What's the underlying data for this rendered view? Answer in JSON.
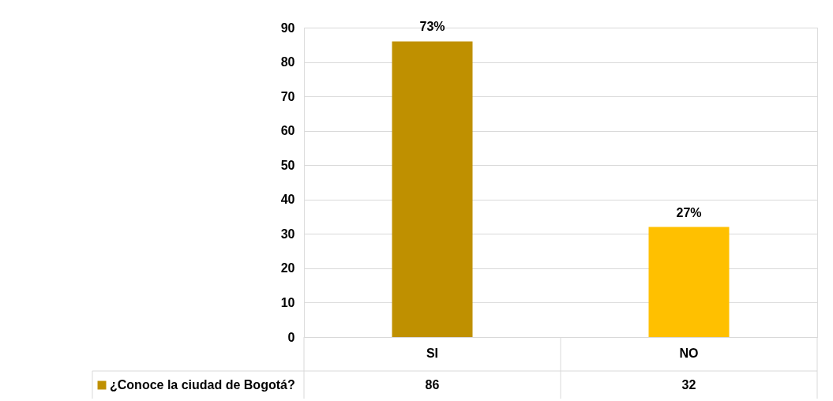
{
  "chart_data": {
    "type": "bar",
    "categories": [
      "SI",
      "NO"
    ],
    "series": [
      {
        "name": "¿Conoce la ciudad de Bogotá?",
        "values": [
          86,
          32
        ],
        "value_labels": [
          "86",
          "32"
        ]
      }
    ],
    "colors": [
      "#bf9000",
      "#ffc000"
    ],
    "ylim": [
      0,
      90
    ],
    "yticks": [
      0,
      10,
      20,
      30,
      40,
      50,
      60,
      70,
      80,
      90
    ],
    "grid": "y",
    "legend": "bottom",
    "annotations": [
      {
        "text": "73%",
        "x": "SI",
        "y": 86
      },
      {
        "text": "27%",
        "x": "NO",
        "y": 32
      }
    ]
  }
}
